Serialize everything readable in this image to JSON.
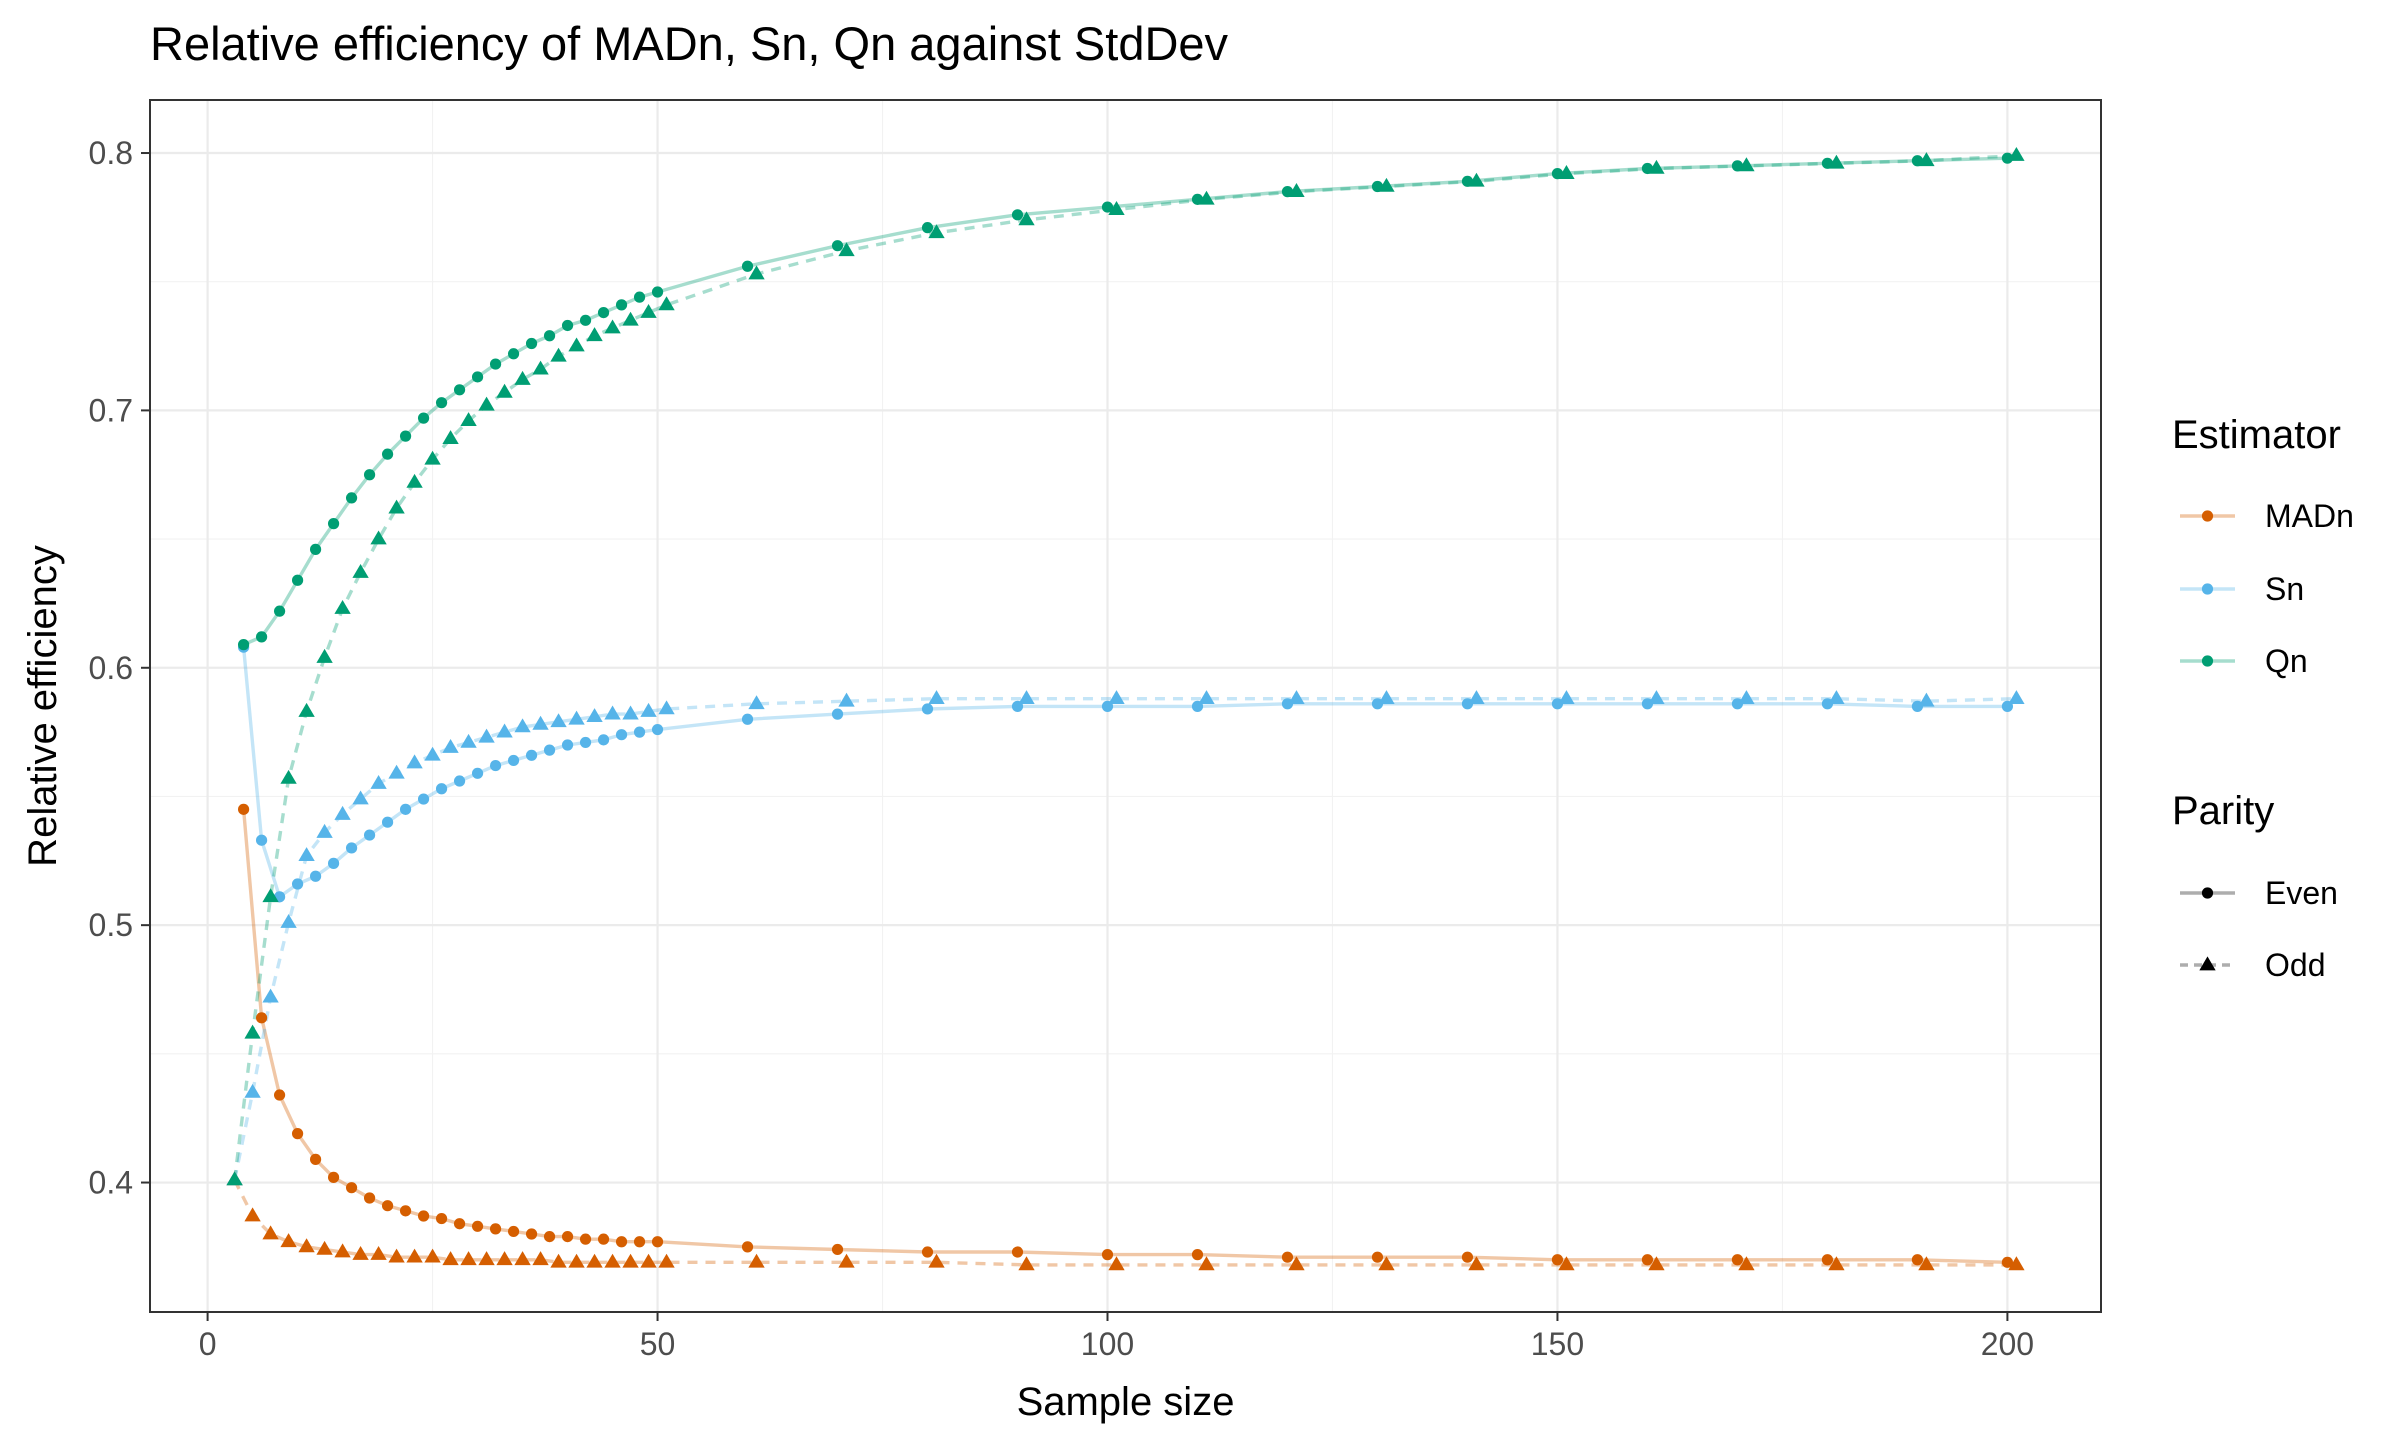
{
  "chart_data": {
    "type": "line",
    "title": "Relative efficiency of MADn, Sn, Qn against StdDev",
    "xlabel": "Sample size",
    "ylabel": "Relative efficiency",
    "xlim": [
      -6.4,
      210.4
    ],
    "ylim": [
      0.3497,
      0.8206
    ],
    "x_ticks": [
      "0",
      "50",
      "100",
      "150",
      "200"
    ],
    "x_tick_values": [
      0,
      50,
      100,
      150,
      200
    ],
    "y_ticks": [
      "0.4",
      "0.5",
      "0.6",
      "0.7",
      "0.8"
    ],
    "y_tick_values": [
      0.4,
      0.5,
      0.6,
      0.7,
      0.8
    ],
    "grid": true,
    "legend_placement": "right",
    "legends": [
      {
        "title": "Estimator",
        "entries": [
          "MADn",
          "Sn",
          "Qn"
        ]
      },
      {
        "title": "Parity",
        "entries": [
          "Even",
          "Odd"
        ]
      }
    ],
    "colors": {
      "MADn": "#D55E00",
      "Sn": "#56B4E9",
      "Qn": "#009E73",
      "parity_key": "#999999"
    },
    "series": [
      {
        "estimator": "MADn",
        "parity": "Even",
        "x": [
          4,
          6,
          8,
          10,
          12,
          14,
          16,
          18,
          20,
          22,
          24,
          26,
          28,
          30,
          32,
          34,
          36,
          38,
          40,
          42,
          44,
          46,
          48,
          50,
          60,
          70,
          80,
          90,
          100,
          110,
          120,
          130,
          140,
          150,
          160,
          170,
          180,
          190,
          200
        ],
        "y": [
          0.545,
          0.464,
          0.434,
          0.419,
          0.409,
          0.402,
          0.398,
          0.394,
          0.391,
          0.389,
          0.387,
          0.386,
          0.384,
          0.383,
          0.382,
          0.381,
          0.38,
          0.379,
          0.379,
          0.378,
          0.378,
          0.377,
          0.377,
          0.377,
          0.375,
          0.374,
          0.373,
          0.373,
          0.372,
          0.372,
          0.371,
          0.371,
          0.371,
          0.37,
          0.37,
          0.37,
          0.37,
          0.37,
          0.369
        ]
      },
      {
        "estimator": "MADn",
        "parity": "Odd",
        "x": [
          3,
          5,
          7,
          9,
          11,
          13,
          15,
          17,
          19,
          21,
          23,
          25,
          27,
          29,
          31,
          33,
          35,
          37,
          39,
          41,
          43,
          45,
          47,
          49,
          51,
          61,
          71,
          81,
          91,
          101,
          111,
          121,
          131,
          141,
          151,
          161,
          171,
          181,
          191,
          201
        ],
        "y": [
          0.401,
          0.387,
          0.38,
          0.377,
          0.375,
          0.374,
          0.373,
          0.372,
          0.372,
          0.371,
          0.371,
          0.371,
          0.37,
          0.37,
          0.37,
          0.37,
          0.37,
          0.37,
          0.369,
          0.369,
          0.369,
          0.369,
          0.369,
          0.369,
          0.369,
          0.369,
          0.369,
          0.369,
          0.368,
          0.368,
          0.368,
          0.368,
          0.368,
          0.368,
          0.368,
          0.368,
          0.368,
          0.368,
          0.368,
          0.368
        ]
      },
      {
        "estimator": "Sn",
        "parity": "Even",
        "x": [
          4,
          6,
          8,
          10,
          12,
          14,
          16,
          18,
          20,
          22,
          24,
          26,
          28,
          30,
          32,
          34,
          36,
          38,
          40,
          42,
          44,
          46,
          48,
          50,
          60,
          70,
          80,
          90,
          100,
          110,
          120,
          130,
          140,
          150,
          160,
          170,
          180,
          190,
          200
        ],
        "y": [
          0.608,
          0.533,
          0.511,
          0.516,
          0.519,
          0.524,
          0.53,
          0.535,
          0.54,
          0.545,
          0.549,
          0.553,
          0.556,
          0.559,
          0.562,
          0.564,
          0.566,
          0.568,
          0.57,
          0.571,
          0.572,
          0.574,
          0.575,
          0.576,
          0.58,
          0.582,
          0.584,
          0.585,
          0.585,
          0.585,
          0.586,
          0.586,
          0.586,
          0.586,
          0.586,
          0.586,
          0.586,
          0.585,
          0.585
        ]
      },
      {
        "estimator": "Sn",
        "parity": "Odd",
        "x": [
          3,
          5,
          7,
          9,
          11,
          13,
          15,
          17,
          19,
          21,
          23,
          25,
          27,
          29,
          31,
          33,
          35,
          37,
          39,
          41,
          43,
          45,
          47,
          49,
          51,
          61,
          71,
          81,
          91,
          101,
          111,
          121,
          131,
          141,
          151,
          161,
          171,
          181,
          191,
          201
        ],
        "y": [
          0.401,
          0.435,
          0.472,
          0.501,
          0.527,
          0.536,
          0.543,
          0.549,
          0.555,
          0.559,
          0.563,
          0.566,
          0.569,
          0.571,
          0.573,
          0.575,
          0.577,
          0.578,
          0.579,
          0.58,
          0.581,
          0.582,
          0.582,
          0.583,
          0.584,
          0.586,
          0.587,
          0.588,
          0.588,
          0.588,
          0.588,
          0.588,
          0.588,
          0.588,
          0.588,
          0.588,
          0.588,
          0.588,
          0.587,
          0.588
        ]
      },
      {
        "estimator": "Qn",
        "parity": "Even",
        "x": [
          4,
          6,
          8,
          10,
          12,
          14,
          16,
          18,
          20,
          22,
          24,
          26,
          28,
          30,
          32,
          34,
          36,
          38,
          40,
          42,
          44,
          46,
          48,
          50,
          60,
          70,
          80,
          90,
          100,
          110,
          120,
          130,
          140,
          150,
          160,
          170,
          180,
          190,
          200
        ],
        "y": [
          0.609,
          0.612,
          0.622,
          0.634,
          0.646,
          0.656,
          0.666,
          0.675,
          0.683,
          0.69,
          0.697,
          0.703,
          0.708,
          0.713,
          0.718,
          0.722,
          0.726,
          0.729,
          0.733,
          0.735,
          0.738,
          0.741,
          0.744,
          0.746,
          0.756,
          0.764,
          0.771,
          0.776,
          0.779,
          0.782,
          0.785,
          0.787,
          0.789,
          0.792,
          0.794,
          0.795,
          0.796,
          0.797,
          0.798
        ]
      },
      {
        "estimator": "Qn",
        "parity": "Odd",
        "x": [
          3,
          5,
          7,
          9,
          11,
          13,
          15,
          17,
          19,
          21,
          23,
          25,
          27,
          29,
          31,
          33,
          35,
          37,
          39,
          41,
          43,
          45,
          47,
          49,
          51,
          61,
          71,
          81,
          91,
          101,
          111,
          121,
          131,
          141,
          151,
          161,
          171,
          181,
          191,
          201
        ],
        "y": [
          0.401,
          0.458,
          0.511,
          0.557,
          0.583,
          0.604,
          0.623,
          0.637,
          0.65,
          0.662,
          0.672,
          0.681,
          0.689,
          0.696,
          0.702,
          0.707,
          0.712,
          0.716,
          0.721,
          0.725,
          0.729,
          0.732,
          0.735,
          0.738,
          0.741,
          0.753,
          0.762,
          0.769,
          0.774,
          0.778,
          0.782,
          0.785,
          0.787,
          0.789,
          0.792,
          0.794,
          0.795,
          0.796,
          0.797,
          0.799
        ]
      }
    ]
  }
}
